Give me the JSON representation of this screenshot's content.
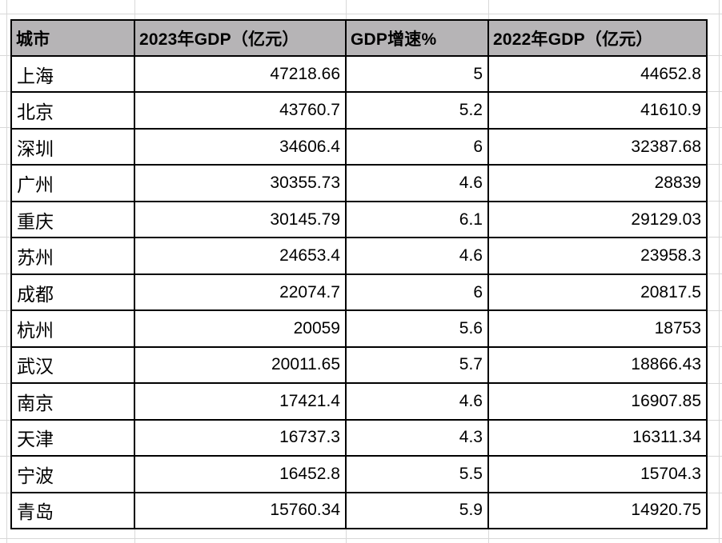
{
  "table": {
    "headers": [
      "城市",
      "2023年GDP（亿元）",
      "GDP增速%",
      "2022年GDP（亿元）"
    ],
    "rows": [
      {
        "city": "上海",
        "gdp_2023": "47218.66",
        "growth": "5",
        "gdp_2022": "44652.8"
      },
      {
        "city": "北京",
        "gdp_2023": "43760.7",
        "growth": "5.2",
        "gdp_2022": "41610.9"
      },
      {
        "city": "深圳",
        "gdp_2023": "34606.4",
        "growth": "6",
        "gdp_2022": "32387.68"
      },
      {
        "city": "广州",
        "gdp_2023": "30355.73",
        "growth": "4.6",
        "gdp_2022": "28839"
      },
      {
        "city": "重庆",
        "gdp_2023": "30145.79",
        "growth": "6.1",
        "gdp_2022": "29129.03"
      },
      {
        "city": "苏州",
        "gdp_2023": "24653.4",
        "growth": "4.6",
        "gdp_2022": "23958.3"
      },
      {
        "city": "成都",
        "gdp_2023": "22074.7",
        "growth": "6",
        "gdp_2022": "20817.5"
      },
      {
        "city": "杭州",
        "gdp_2023": "20059",
        "growth": "5.6",
        "gdp_2022": "18753"
      },
      {
        "city": "武汉",
        "gdp_2023": "20011.65",
        "growth": "5.7",
        "gdp_2022": "18866.43"
      },
      {
        "city": "南京",
        "gdp_2023": "17421.4",
        "growth": "4.6",
        "gdp_2022": "16907.85"
      },
      {
        "city": "天津",
        "gdp_2023": "16737.3",
        "growth": "4.3",
        "gdp_2022": "16311.34"
      },
      {
        "city": "宁波",
        "gdp_2023": "16452.8",
        "growth": "5.5",
        "gdp_2022": "15704.3"
      },
      {
        "city": "青岛",
        "gdp_2023": "15760.34",
        "growth": "5.9",
        "gdp_2022": "14920.75"
      }
    ],
    "colors": {
      "header_bg": "#b6b4b6",
      "table_border": "#000000",
      "spreadsheet_gridline": "#d8d8d8"
    }
  }
}
